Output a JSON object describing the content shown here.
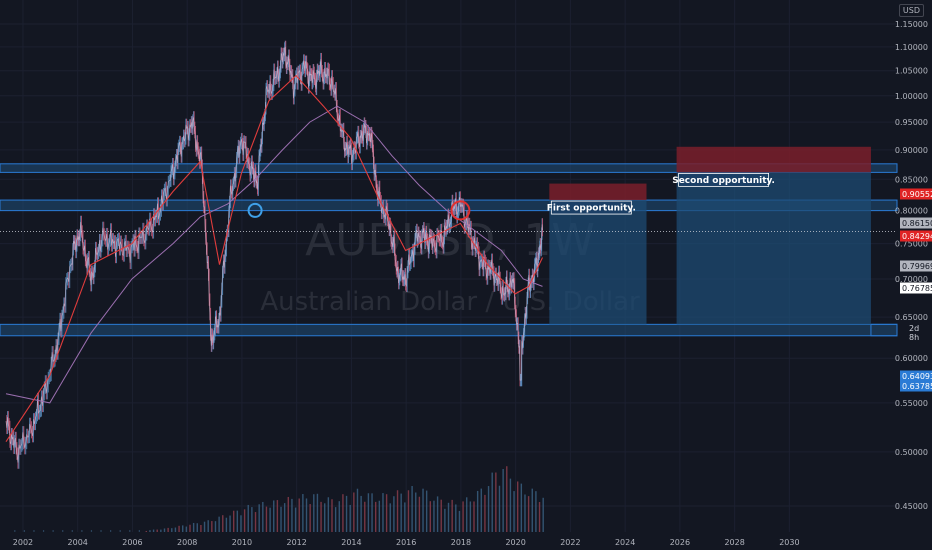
{
  "header": {
    "currency": "USD"
  },
  "watermark": {
    "symbol": "AUDUSD, 1W",
    "description": "Australian Dollar / U.S. Dollar"
  },
  "countdown": "2d 8h",
  "annotations": [
    {
      "text": "First opportunity.",
      "color": "#ffffff"
    },
    {
      "text": "Second opportunity.",
      "color": "#ffffff"
    }
  ],
  "colors": {
    "background": "#131722",
    "axis_text": "#b2b5be",
    "grid": "#1c2030",
    "zone_fill": "#1f4e7a",
    "zone_border": "#2a7bd5",
    "stop_fill": "#7a1f2a",
    "target_fill": "#1d4b73",
    "ma_fast": "#e03c3c",
    "ma_slow": "#9b6fb0",
    "vol_up": "#3a5f80",
    "vol_down": "#8a3c4a",
    "circle_blue": "#3fa0e8",
    "circle_red": "#e03030"
  },
  "price_labels": [
    {
      "text": "0.90552",
      "bg": "#e02424",
      "value": 0.90552
    },
    {
      "text": "0.86150",
      "bg": "#b2b5be",
      "value": 0.8615
    },
    {
      "text": "0.84294",
      "bg": "#e02424",
      "value": 0.84294
    },
    {
      "text": "0.79969",
      "bg": "#b2b5be",
      "value": 0.79969
    },
    {
      "text": "0.76785",
      "bg": "#ffffff",
      "value": 0.76785
    },
    {
      "text": "0.64093",
      "bg": "#2a7bd5",
      "value": 0.64093
    },
    {
      "text": "0.63785",
      "bg": "#2a7bd5",
      "value": 0.63785
    }
  ],
  "chart_data": {
    "type": "line",
    "title": "AUDUSD, 1W",
    "xlabel": "",
    "ylabel": "",
    "ylim": [
      0.42,
      1.16
    ],
    "xlim": [
      2001.4,
      2034.5
    ],
    "log_scale": true,
    "x_ticks": [
      "2002",
      "2004",
      "2006",
      "2008",
      "2010",
      "2012",
      "2014",
      "2016",
      "2018",
      "2020",
      "2022",
      "2024",
      "2026",
      "2028",
      "2030"
    ],
    "y_ticks": [
      "0.45000",
      "0.50000",
      "0.55000",
      "0.60000",
      "0.65000",
      "0.70000",
      "0.75000",
      "0.80000",
      "0.85000",
      "0.90000",
      "0.95000",
      "1.00000",
      "1.05000",
      "1.10000",
      "1.15000"
    ],
    "price_series": {
      "name": "AUDUSD",
      "x": [
        2001.4,
        2001.8,
        2002.3,
        2002.8,
        2003.3,
        2003.8,
        2004.1,
        2004.5,
        2004.9,
        2005.4,
        2005.9,
        2006.4,
        2006.9,
        2007.4,
        2007.8,
        2008.2,
        2008.55,
        2008.9,
        2009.2,
        2009.6,
        2010.0,
        2010.4,
        2010.6,
        2010.9,
        2011.3,
        2011.6,
        2011.9,
        2012.3,
        2012.6,
        2012.9,
        2013.3,
        2013.7,
        2014.0,
        2014.4,
        2014.7,
        2015.0,
        2015.4,
        2015.7,
        2016.0,
        2016.4,
        2016.7,
        2017.0,
        2017.4,
        2017.7,
        2018.0,
        2018.4,
        2018.8,
        2019.2,
        2019.6,
        2019.9,
        2020.2,
        2020.5,
        2020.8,
        2021.0
      ],
      "y": [
        0.53,
        0.5,
        0.52,
        0.56,
        0.62,
        0.73,
        0.77,
        0.7,
        0.76,
        0.75,
        0.74,
        0.76,
        0.79,
        0.85,
        0.91,
        0.95,
        0.87,
        0.62,
        0.65,
        0.82,
        0.92,
        0.86,
        0.85,
        1.0,
        1.04,
        1.09,
        1.02,
        1.06,
        1.03,
        1.05,
        1.03,
        0.92,
        0.89,
        0.93,
        0.93,
        0.82,
        0.78,
        0.71,
        0.7,
        0.76,
        0.76,
        0.75,
        0.76,
        0.8,
        0.81,
        0.76,
        0.72,
        0.71,
        0.68,
        0.7,
        0.6,
        0.69,
        0.72,
        0.77
      ]
    },
    "ma_fast": {
      "name": "MA fast",
      "x": [
        2001.4,
        2003.0,
        2004.5,
        2006.0,
        2007.5,
        2008.5,
        2009.2,
        2010.0,
        2011.0,
        2012.0,
        2013.0,
        2014.0,
        2015.0,
        2016.0,
        2017.0,
        2018.0,
        2019.0,
        2020.0,
        2020.5,
        2021.0
      ],
      "y": [
        0.51,
        0.58,
        0.72,
        0.75,
        0.83,
        0.88,
        0.72,
        0.86,
        0.99,
        1.04,
        0.98,
        0.92,
        0.82,
        0.74,
        0.76,
        0.78,
        0.72,
        0.68,
        0.69,
        0.73
      ]
    },
    "ma_slow": {
      "name": "MA slow",
      "x": [
        2001.4,
        2003.0,
        2004.5,
        2006.0,
        2007.5,
        2008.5,
        2009.5,
        2010.5,
        2011.5,
        2012.5,
        2013.5,
        2014.5,
        2015.5,
        2016.5,
        2017.5,
        2018.5,
        2019.5,
        2020.3,
        2021.0
      ],
      "y": [
        0.56,
        0.55,
        0.63,
        0.7,
        0.75,
        0.79,
        0.81,
        0.85,
        0.9,
        0.95,
        0.98,
        0.95,
        0.89,
        0.84,
        0.8,
        0.77,
        0.74,
        0.7,
        0.69
      ]
    },
    "volume": {
      "name": "Volume",
      "x_start": 2006.5,
      "x_end": 2021.0,
      "relative_levels": [
        0.02,
        0.05,
        0.1,
        0.15,
        0.25,
        0.35,
        0.4,
        0.45,
        0.5,
        0.42,
        0.55,
        0.48,
        0.52,
        0.6,
        0.44,
        0.38,
        0.55,
        0.9,
        0.6,
        0.5
      ]
    },
    "zones": [
      {
        "name": "upper-zone",
        "y_low": 0.8615,
        "y_high": 0.876
      },
      {
        "name": "middle-zone",
        "y_low": 0.7997,
        "y_high": 0.8163
      },
      {
        "name": "support-zone",
        "y_low": 0.6268,
        "y_high": 0.6409
      }
    ],
    "positions": [
      {
        "name": "first-opportunity",
        "x_start": 2021.25,
        "x_end": 2024.8,
        "entry": 0.8163,
        "stop": 0.8429,
        "target": 0.6409,
        "label": "First opportunity."
      },
      {
        "name": "second-opportunity",
        "x_start": 2025.9,
        "x_end": 2033.0,
        "entry": 0.8615,
        "stop": 0.9055,
        "target": 0.6409,
        "label": "Second opportunity."
      }
    ],
    "markers": [
      {
        "name": "blue-circle",
        "x": 2010.5,
        "y": 0.8,
        "color": "blue"
      },
      {
        "name": "red-circle",
        "x": 2018.0,
        "y": 0.8,
        "color": "red"
      }
    ],
    "last_price": 0.76785
  }
}
